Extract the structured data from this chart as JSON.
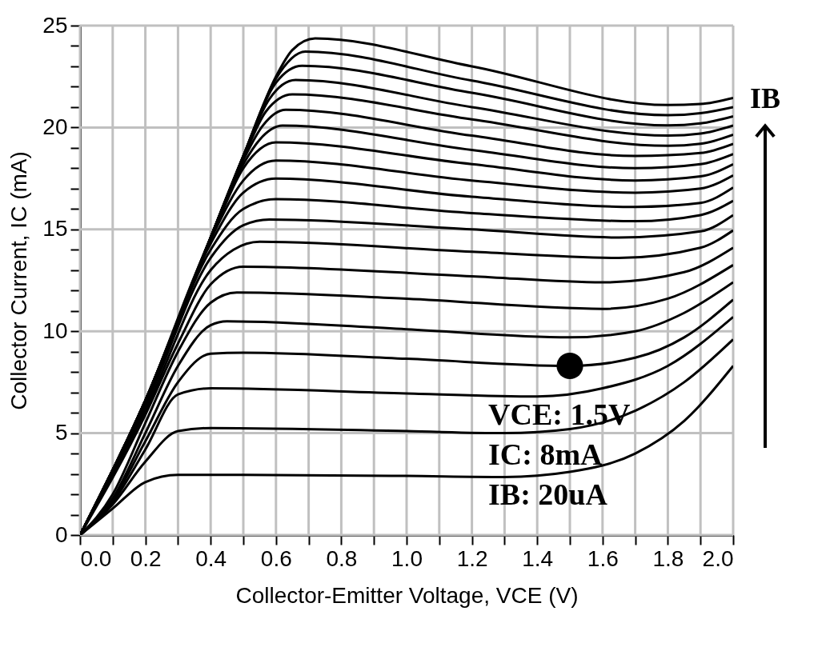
{
  "chart_data": {
    "type": "line",
    "xlabel": "Collector-Emitter Voltage, VCE (V)",
    "ylabel": "Collector Current, IC (mA)",
    "xlim": [
      0,
      2.0
    ],
    "ylim": [
      0,
      25
    ],
    "xticks": [
      {
        "value": 0,
        "label": "0.0"
      },
      {
        "value": 0.1,
        "label": null
      },
      {
        "value": 0.2,
        "label": "0.2"
      },
      {
        "value": 0.3,
        "label": null
      },
      {
        "value": 0.4,
        "label": "0.4"
      },
      {
        "value": 0.5,
        "label": null
      },
      {
        "value": 0.6,
        "label": "0.6"
      },
      {
        "value": 0.7,
        "label": null
      },
      {
        "value": 0.8,
        "label": "0.8"
      },
      {
        "value": 0.9,
        "label": null
      },
      {
        "value": 1.0,
        "label": "1.0"
      },
      {
        "value": 1.1,
        "label": null
      },
      {
        "value": 1.2,
        "label": "1.2"
      },
      {
        "value": 1.3,
        "label": null
      },
      {
        "value": 1.4,
        "label": "1.4"
      },
      {
        "value": 1.5,
        "label": null
      },
      {
        "value": 1.6,
        "label": "1.6"
      },
      {
        "value": 1.7,
        "label": null
      },
      {
        "value": 1.8,
        "label": "1.8"
      },
      {
        "value": 1.9,
        "label": null
      },
      {
        "value": 2.0,
        "label": "2.0"
      }
    ],
    "yticks": [
      0,
      {
        "value": 1,
        "label": null
      },
      {
        "value": 2,
        "label": null
      },
      {
        "value": 3,
        "label": null
      },
      {
        "value": 4,
        "label": null
      },
      5,
      {
        "value": 6,
        "label": null
      },
      {
        "value": 7,
        "label": null
      },
      {
        "value": 8,
        "label": null
      },
      {
        "value": 9,
        "label": null
      },
      10,
      {
        "value": 11,
        "label": null
      },
      {
        "value": 12,
        "label": null
      },
      {
        "value": 13,
        "label": null
      },
      {
        "value": 14,
        "label": null
      },
      15,
      {
        "value": 16,
        "label": null
      },
      {
        "value": 17,
        "label": null
      },
      {
        "value": 18,
        "label": null
      },
      {
        "value": 19,
        "label": null
      },
      20,
      {
        "value": 21,
        "label": null
      },
      {
        "value": 22,
        "label": null
      },
      {
        "value": 23,
        "label": null
      },
      {
        "value": 24,
        "label": null
      },
      25
    ],
    "grid": true,
    "series": [
      {
        "color": "#000000",
        "x": [
          0,
          0.1,
          0.2,
          0.3,
          0.5,
          1.0,
          1.3,
          1.5,
          1.7,
          1.85,
          2.0
        ],
        "values": [
          0,
          1.3,
          2.6,
          2.95,
          2.95,
          2.9,
          2.85,
          3.1,
          4.0,
          5.6,
          8.3
        ]
      },
      {
        "color": "#000000",
        "x": [
          0,
          0.1,
          0.2,
          0.3,
          0.4,
          1.0,
          1.3,
          1.5,
          1.7,
          1.85,
          2.0
        ],
        "values": [
          0,
          1.5,
          3.6,
          5.1,
          5.25,
          5.1,
          5.0,
          5.2,
          6.1,
          7.5,
          9.6
        ]
      },
      {
        "color": "#000000",
        "x": [
          0,
          0.1,
          0.2,
          0.3,
          0.4,
          1.0,
          1.4,
          1.6,
          1.8,
          2.0
        ],
        "values": [
          0,
          1.6,
          4.2,
          6.9,
          7.2,
          6.95,
          6.8,
          7.2,
          8.3,
          10.7
        ]
      },
      {
        "color": "#000000",
        "x": [
          0,
          0.1,
          0.2,
          0.3,
          0.4,
          0.5,
          1.0,
          1.5,
          1.7,
          1.85,
          2.0
        ],
        "values": [
          0,
          1.7,
          4.6,
          7.5,
          8.9,
          8.95,
          8.65,
          8.3,
          8.7,
          9.7,
          11.55
        ]
      },
      {
        "color": "#000000",
        "x": [
          0,
          0.1,
          0.2,
          0.3,
          0.4,
          0.45,
          1.0,
          1.5,
          1.7,
          1.85,
          2.0
        ],
        "values": [
          0,
          1.8,
          5.0,
          8.3,
          10.3,
          10.49,
          10.1,
          9.7,
          10.0,
          10.9,
          12.4
        ]
      },
      {
        "color": "#000000",
        "x": [
          0,
          0.1,
          0.2,
          0.3,
          0.4,
          0.48,
          1.0,
          1.6,
          1.8,
          2.0
        ],
        "values": [
          0,
          2.0,
          5.5,
          9.0,
          11.4,
          11.9,
          11.6,
          11.1,
          11.6,
          13.25
        ]
      },
      {
        "color": "#000000",
        "x": [
          0,
          0.2,
          0.3,
          0.4,
          0.5,
          1.2,
          1.6,
          1.85,
          2.0
        ],
        "values": [
          0,
          5.9,
          9.4,
          12.3,
          13.17,
          12.7,
          12.4,
          12.9,
          14.1
        ]
      },
      {
        "color": "#000000",
        "x": [
          0,
          0.2,
          0.4,
          0.47,
          0.55,
          1.2,
          1.65,
          1.9,
          2.0
        ],
        "values": [
          0,
          6.1,
          13.0,
          14.0,
          14.39,
          13.9,
          13.6,
          14.1,
          14.95
        ]
      },
      {
        "color": "#000000",
        "x": [
          0,
          0.2,
          0.4,
          0.5,
          0.58,
          1.2,
          1.65,
          1.9,
          2.0
        ],
        "values": [
          0,
          6.3,
          13.6,
          15.2,
          15.48,
          15.0,
          14.6,
          14.9,
          15.7
        ]
      },
      {
        "color": "#000000",
        "x": [
          0,
          0.2,
          0.4,
          0.5,
          0.6,
          1.2,
          1.7,
          1.9,
          2.0
        ],
        "values": [
          0,
          6.4,
          14.0,
          16.0,
          16.48,
          15.8,
          15.4,
          15.7,
          16.4
        ]
      },
      {
        "color": "#000000",
        "x": [
          0,
          0.2,
          0.4,
          0.5,
          0.6,
          1.2,
          1.7,
          1.9,
          2.0
        ],
        "values": [
          0,
          6.5,
          14.3,
          16.8,
          17.49,
          16.6,
          16.1,
          16.3,
          17.05
        ]
      },
      {
        "color": "#000000",
        "x": [
          0,
          0.2,
          0.4,
          0.5,
          0.6,
          1.2,
          1.7,
          1.9,
          2.0
        ],
        "values": [
          0,
          6.6,
          14.5,
          17.4,
          18.38,
          17.4,
          16.8,
          17.0,
          17.65
        ]
      },
      {
        "color": "#000000",
        "x": [
          0,
          0.2,
          0.4,
          0.5,
          0.6,
          1.2,
          1.7,
          1.9,
          2.0
        ],
        "values": [
          0,
          6.6,
          14.5,
          18.0,
          19.27,
          18.2,
          17.4,
          17.6,
          18.2
        ]
      },
      {
        "color": "#000000",
        "x": [
          0,
          0.2,
          0.4,
          0.5,
          0.55,
          0.62,
          1.2,
          1.7,
          1.9,
          2.0
        ],
        "values": [
          0,
          6.6,
          14.6,
          18.2,
          19.4,
          20.09,
          18.9,
          18.0,
          18.2,
          18.7
        ]
      },
      {
        "color": "#000000",
        "x": [
          0,
          0.2,
          0.4,
          0.5,
          0.56,
          0.63,
          1.2,
          1.7,
          1.9,
          2.0
        ],
        "values": [
          0,
          6.6,
          14.6,
          18.4,
          20.1,
          20.87,
          19.6,
          18.6,
          18.75,
          19.2
        ]
      },
      {
        "color": "#000000",
        "x": [
          0,
          0.2,
          0.4,
          0.5,
          0.57,
          0.65,
          1.2,
          1.8,
          1.9,
          2.0
        ],
        "values": [
          0,
          6.6,
          14.6,
          18.5,
          20.8,
          21.62,
          20.4,
          19.1,
          19.2,
          19.65
        ]
      },
      {
        "color": "#000000",
        "x": [
          0,
          0.2,
          0.4,
          0.5,
          0.58,
          0.66,
          1.2,
          1.8,
          1.9,
          2.0
        ],
        "values": [
          0,
          6.6,
          14.6,
          18.6,
          21.4,
          22.33,
          21.0,
          19.6,
          19.7,
          20.1
        ]
      },
      {
        "color": "#000000",
        "x": [
          0,
          0.2,
          0.4,
          0.5,
          0.6,
          0.68,
          1.2,
          1.8,
          1.9,
          2.0
        ],
        "values": [
          0,
          6.6,
          14.6,
          18.6,
          22.2,
          23.03,
          21.7,
          20.1,
          20.2,
          20.55
        ]
      },
      {
        "color": "#000000",
        "x": [
          0,
          0.2,
          0.4,
          0.5,
          0.6,
          0.69,
          1.2,
          1.8,
          1.9,
          2.0
        ],
        "values": [
          0,
          6.6,
          14.6,
          18.6,
          22.4,
          23.72,
          22.3,
          20.6,
          20.7,
          21.0
        ]
      },
      {
        "color": "#000000",
        "x": [
          0,
          0.2,
          0.4,
          0.5,
          0.6,
          0.65,
          0.72,
          1.2,
          1.8,
          1.9,
          2.0
        ],
        "values": [
          0,
          6.6,
          14.6,
          18.6,
          22.5,
          23.8,
          24.37,
          23.0,
          21.1,
          21.15,
          21.45
        ]
      },
      {
        "type": "scatter",
        "color": "#000000",
        "x": [
          1.5
        ],
        "values": [
          8.3
        ]
      }
    ],
    "annotations": [
      "VCE: 1.5V",
      "IC: 8mA",
      "IB: 20uA",
      "IB"
    ]
  }
}
